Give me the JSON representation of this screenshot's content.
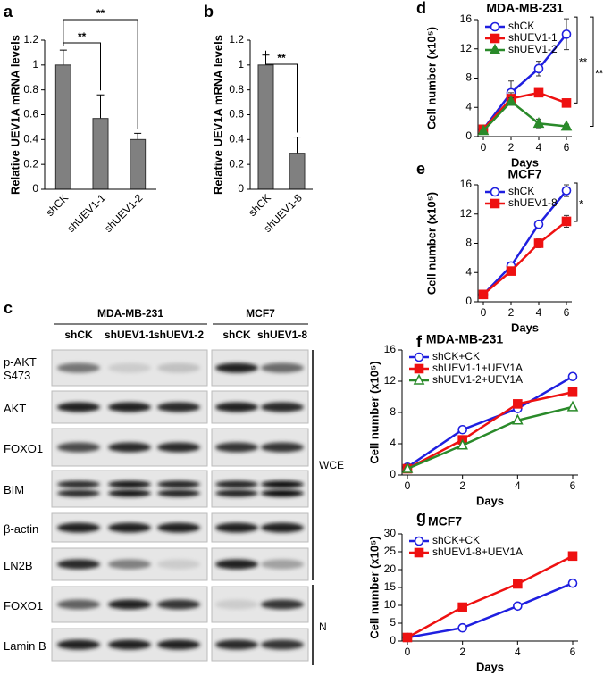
{
  "chart_data": [
    {
      "type": "bar",
      "label": "a",
      "ylabel": "Relative UEV1A mRNA levels",
      "categories": [
        "shCK",
        "shUEV1-1",
        "shUEV1-2"
      ],
      "values": [
        1,
        0.57,
        0.4
      ],
      "errors": [
        0.12,
        0.19,
        0.05
      ],
      "color": "#808080",
      "ylim": [
        0,
        1.2
      ],
      "yticks": [
        0,
        0.2,
        0.4,
        0.6,
        0.8,
        1,
        1.2
      ],
      "annotations": [
        "**",
        "**"
      ]
    },
    {
      "type": "bar",
      "label": "b",
      "ylabel": "Relative UEV1A mRNA levels",
      "categories": [
        "shCK",
        "shUEV1-8"
      ],
      "values": [
        1,
        0.29
      ],
      "errors": [
        0.08,
        0.13
      ],
      "color": "#808080",
      "ylim": [
        0,
        1.2
      ],
      "yticks": [
        0,
        0.2,
        0.4,
        0.6,
        0.8,
        1,
        1.2
      ],
      "annotations": [
        "**"
      ]
    },
    {
      "type": "line",
      "label": "d",
      "title": "MDA-MB-231",
      "xlabel": "Days",
      "ylabel": "Cell number (x10⁵)",
      "x": [
        0,
        2,
        4,
        6
      ],
      "xlim": [
        0,
        6
      ],
      "xticks": [
        0,
        2,
        4,
        6
      ],
      "ylim": [
        0,
        16
      ],
      "yticks": [
        0,
        4,
        8,
        12,
        16
      ],
      "legend": "upper left",
      "series": [
        {
          "name": "shCK",
          "color": "#1f1fe0",
          "marker": "circle-open",
          "values": [
            1,
            6,
            9.3,
            14
          ],
          "errors": [
            0.3,
            1.6,
            1,
            2.1
          ]
        },
        {
          "name": "shUEV1-1",
          "color": "#ee1111",
          "marker": "square",
          "values": [
            1,
            5.2,
            6,
            4.6
          ],
          "errors": [
            0.2,
            0.8,
            0.4,
            0.3
          ]
        },
        {
          "name": "shUEV1-2",
          "color": "#2a8a2a",
          "marker": "triangle",
          "values": [
            0.8,
            4.8,
            1.8,
            1.4
          ],
          "errors": [
            0.2,
            0.5,
            0.6,
            0.3
          ]
        }
      ],
      "annotations": [
        "**",
        "**"
      ]
    },
    {
      "type": "line",
      "label": "e",
      "title": "MCF7",
      "xlabel": "Days",
      "ylabel": "Cell number (x10⁵)",
      "x": [
        0,
        2,
        4,
        6
      ],
      "xlim": [
        0,
        6
      ],
      "xticks": [
        0,
        2,
        4,
        6
      ],
      "ylim": [
        0,
        16
      ],
      "yticks": [
        0,
        4,
        8,
        12,
        16
      ],
      "legend": "upper left",
      "series": [
        {
          "name": "shCK",
          "color": "#1f1fe0",
          "marker": "circle-open",
          "values": [
            1,
            4.9,
            10.6,
            15.2
          ],
          "errors": [
            0.2,
            0.3,
            0.3,
            0.8
          ]
        },
        {
          "name": "shUEV1-8",
          "color": "#ee1111",
          "marker": "square",
          "values": [
            1,
            4.2,
            8,
            11
          ],
          "errors": [
            0.2,
            0.3,
            0.6,
            0.8
          ]
        }
      ],
      "annotations": [
        "*"
      ]
    },
    {
      "type": "line",
      "label": "f",
      "title": "MDA-MB-231",
      "xlabel": "Days",
      "ylabel": "Cell number (x10⁵)",
      "x": [
        0,
        2,
        4,
        6
      ],
      "xlim": [
        0,
        6
      ],
      "xticks": [
        0,
        2,
        4,
        6
      ],
      "ylim": [
        0,
        16
      ],
      "yticks": [
        0,
        4,
        8,
        12,
        16
      ],
      "legend": "upper left",
      "series": [
        {
          "name": "shCK+CK",
          "color": "#1f1fe0",
          "marker": "circle-open",
          "values": [
            1,
            5.8,
            8.5,
            12.6
          ]
        },
        {
          "name": "shUEV1-1+UEV1A",
          "color": "#ee1111",
          "marker": "square",
          "values": [
            0.8,
            4.5,
            9.1,
            10.6
          ]
        },
        {
          "name": "shUEV1-2+UEV1A",
          "color": "#2a8a2a",
          "marker": "triangle-open",
          "values": [
            0.8,
            3.8,
            7,
            8.7
          ]
        }
      ]
    },
    {
      "type": "line",
      "label": "g",
      "title": "MCF7",
      "xlabel": "Days",
      "ylabel": "Cell number (x10⁵)",
      "x": [
        0,
        2,
        4,
        6
      ],
      "xlim": [
        0,
        6
      ],
      "xticks": [
        0,
        2,
        4,
        6
      ],
      "ylim": [
        0,
        30
      ],
      "yticks": [
        0,
        5,
        10,
        15,
        20,
        25,
        30
      ],
      "legend": "upper left",
      "series": [
        {
          "name": "shCK+CK",
          "color": "#1f1fe0",
          "marker": "circle-open",
          "values": [
            1,
            3.7,
            9.8,
            16.2
          ]
        },
        {
          "name": "shUEV1-8+UEV1A",
          "color": "#ee1111",
          "marker": "square",
          "values": [
            1,
            9.5,
            16,
            23.8
          ]
        }
      ]
    }
  ],
  "blot": {
    "label": "c",
    "groups": [
      "MDA-MB-231",
      "MCF7"
    ],
    "lanes": [
      [
        "shCK",
        "shUEV1-1",
        "shUEV1-2"
      ],
      [
        "shCK",
        "shUEV1-8"
      ]
    ],
    "rows": [
      "p-AKT S473",
      "AKT",
      "FOXO1",
      "BIM",
      "β-actin",
      "LN2B",
      "FOXO1",
      "Lamin B"
    ],
    "fractions": [
      "WCE",
      "N"
    ]
  }
}
